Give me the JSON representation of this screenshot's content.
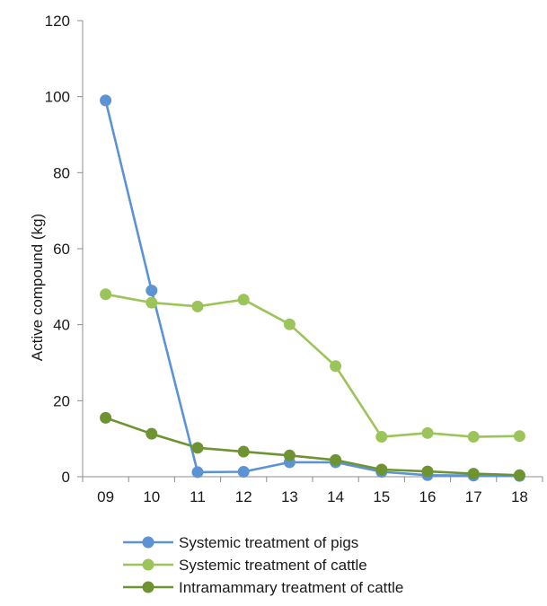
{
  "chart_data": {
    "type": "line",
    "title": "",
    "xlabel": "",
    "ylabel": "Active compound (kg)",
    "categories": [
      "09",
      "10",
      "11",
      "12",
      "13",
      "14",
      "15",
      "16",
      "17",
      "18"
    ],
    "ylim": [
      0,
      120
    ],
    "yticks": [
      "0",
      "20",
      "40",
      "60",
      "80",
      "100",
      "120"
    ],
    "grid": false,
    "legend_position": "bottom",
    "series": [
      {
        "name": "Systemic treatment of pigs",
        "color": "#5b93d4",
        "values": [
          99,
          49,
          1.2,
          1.3,
          3.8,
          3.8,
          1.3,
          0.4,
          0.3,
          0.2
        ]
      },
      {
        "name": "Systemic treatment of cattle",
        "color": "#9bc45a",
        "values": [
          48,
          45.8,
          44.8,
          46.6,
          40.1,
          29.1,
          10.5,
          11.5,
          10.5,
          10.7
        ]
      },
      {
        "name": "Intramammary treatment of cattle",
        "color": "#6e9432",
        "values": [
          15.5,
          11.3,
          7.6,
          6.6,
          5.6,
          4.4,
          1.9,
          1.4,
          0.8,
          0.4
        ]
      }
    ]
  }
}
